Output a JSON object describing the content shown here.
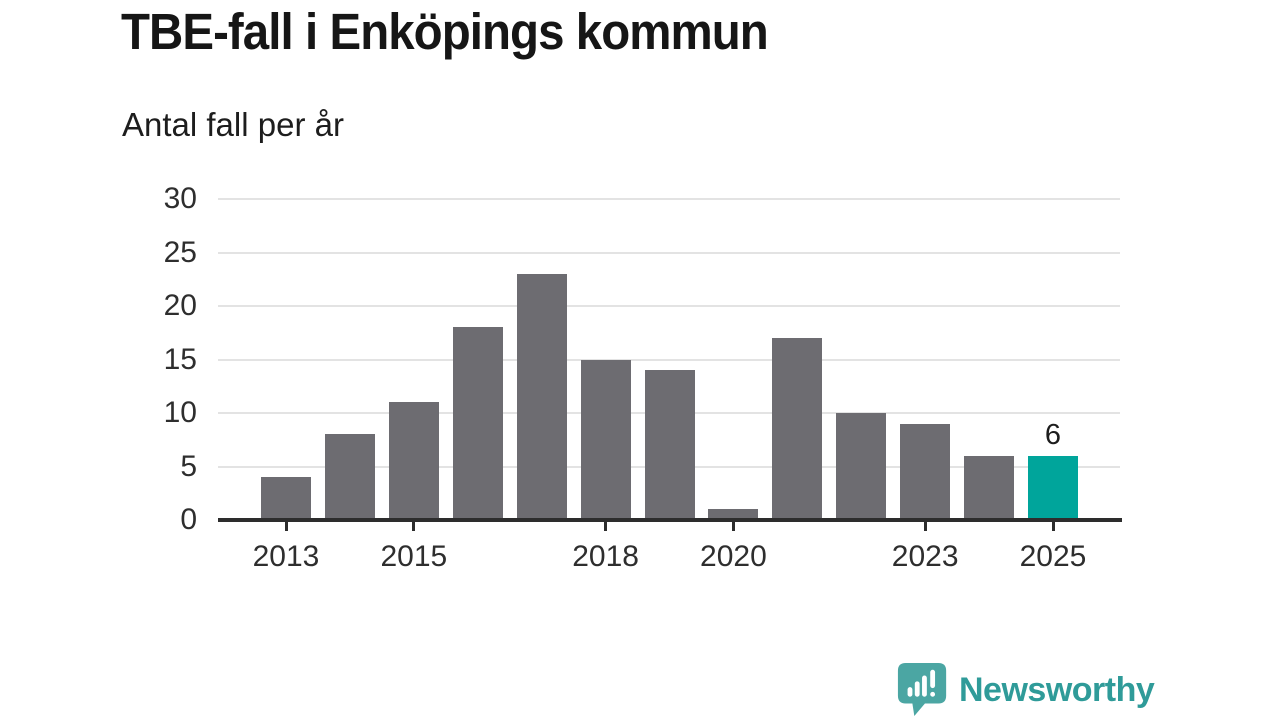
{
  "title": "TBE-fall i Enköpings kommun",
  "subtitle": "Antal fall per år",
  "logo": {
    "text": "Newsworthy",
    "mark_color": "#4ba6a3",
    "text_color": "#2f9b99"
  },
  "colors": {
    "bar": "#6d6c71",
    "highlight": "#00a59b",
    "grid": "#e3e3e3",
    "axis": "#2d2d2d",
    "axis_text": "#2e2e2e"
  },
  "chart_data": {
    "type": "bar",
    "title": "TBE-fall i Enköpings kommun",
    "subtitle": "Antal fall per år",
    "xlabel": "",
    "ylabel": "Antal fall per år",
    "categories": [
      2013,
      2014,
      2015,
      2016,
      2017,
      2018,
      2019,
      2020,
      2021,
      2022,
      2023,
      2024,
      2025
    ],
    "values": [
      4,
      8,
      11,
      18,
      23,
      15,
      14,
      1,
      17,
      10,
      9,
      6,
      6
    ],
    "ylim": [
      0,
      30
    ],
    "yticks": [
      0,
      5,
      10,
      15,
      20,
      25,
      30
    ],
    "xticks": [
      2013,
      2015,
      2018,
      2020,
      2023,
      2025
    ],
    "highlight_index": 12,
    "highlight_label": "6",
    "grid": "horizontal",
    "legend": "none"
  }
}
